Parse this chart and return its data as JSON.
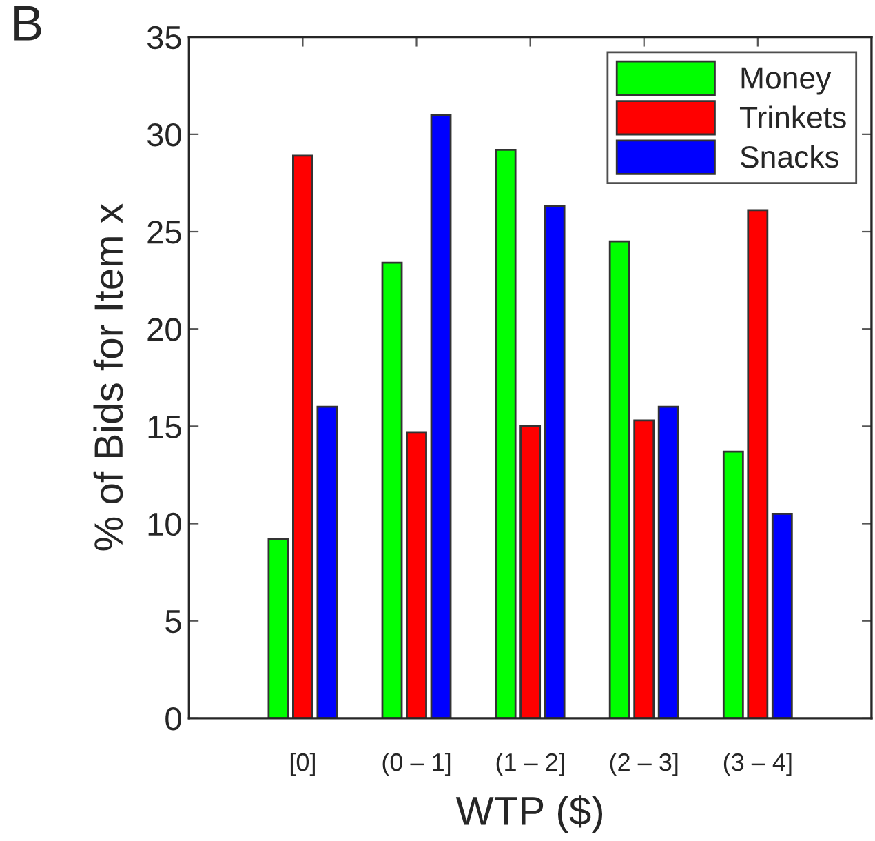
{
  "chart_data": {
    "type": "bar",
    "categories": [
      "[0]",
      "(0 – 1]",
      "(1 – 2]",
      "(2 – 3]",
      "(3 – 4]"
    ],
    "series": [
      {
        "name": "Money",
        "color": "#00ff00",
        "values": [
          9.2,
          23.4,
          29.2,
          24.5,
          13.7
        ]
      },
      {
        "name": "Trinkets",
        "color": "#ff0000",
        "values": [
          28.9,
          14.7,
          15.0,
          15.3,
          26.1
        ]
      },
      {
        "name": "Snacks",
        "color": "#0000ff",
        "values": [
          16.0,
          31.0,
          26.3,
          16.0,
          10.5
        ]
      }
    ],
    "xlabel": "WTP ($)",
    "ylabel": "% of Bids for Item x",
    "annotations": [
      "B"
    ],
    "ylim": [
      0,
      35
    ],
    "yticks": [
      0,
      5,
      10,
      15,
      20,
      25,
      30,
      35
    ],
    "legend": "top right",
    "grid": false
  }
}
